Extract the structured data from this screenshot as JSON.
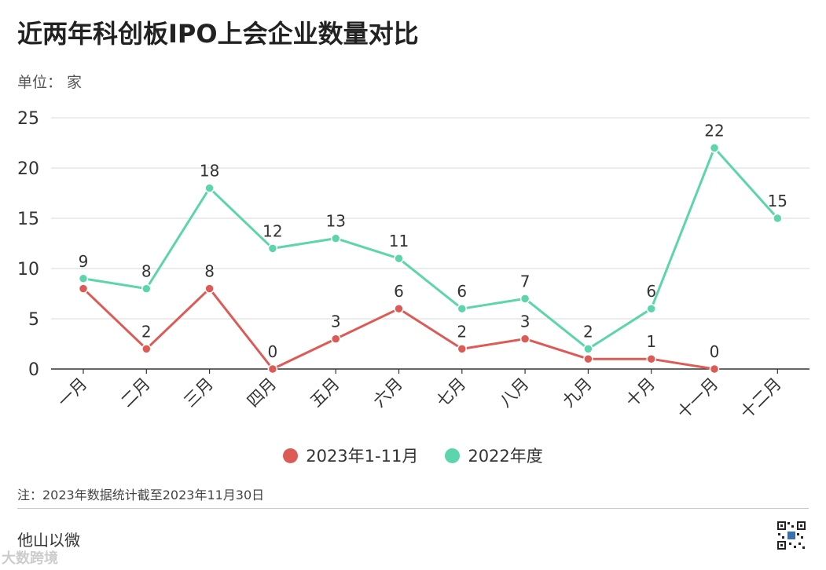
{
  "header": {
    "title": "近两年科创板IPO上会企业数量对比",
    "unit_label": "单位：  家"
  },
  "chart_data": {
    "type": "line",
    "categories": [
      "一月",
      "二月",
      "三月",
      "四月",
      "五月",
      "六月",
      "七月",
      "八月",
      "九月",
      "十月",
      "十一月",
      "十二月"
    ],
    "ylim": [
      0,
      25
    ],
    "yticks": [
      0,
      5,
      10,
      15,
      20,
      25
    ],
    "grid": true,
    "legend_position": "bottom-center",
    "series": [
      {
        "name": "2023年1-11月",
        "color": "#dd5b56",
        "values": [
          8,
          2,
          8,
          0,
          3,
          6,
          2,
          3,
          1,
          1,
          0,
          null
        ]
      },
      {
        "name": "2022年度",
        "color": "#5dd5ac",
        "values": [
          9,
          8,
          18,
          12,
          13,
          11,
          6,
          7,
          2,
          6,
          22,
          15
        ]
      }
    ],
    "data_labels": [
      {
        "series": 0,
        "values": [
          null,
          2,
          8,
          0,
          3,
          6,
          2,
          3,
          null,
          1,
          0,
          null
        ]
      },
      {
        "series": 1,
        "values": [
          9,
          8,
          18,
          12,
          13,
          11,
          6,
          7,
          2,
          6,
          22,
          15
        ]
      }
    ]
  },
  "footer": {
    "note": "注：2023年数据统计截至2023年11月30日",
    "brand": "他山以微",
    "watermark_brand": "大数跨境"
  }
}
